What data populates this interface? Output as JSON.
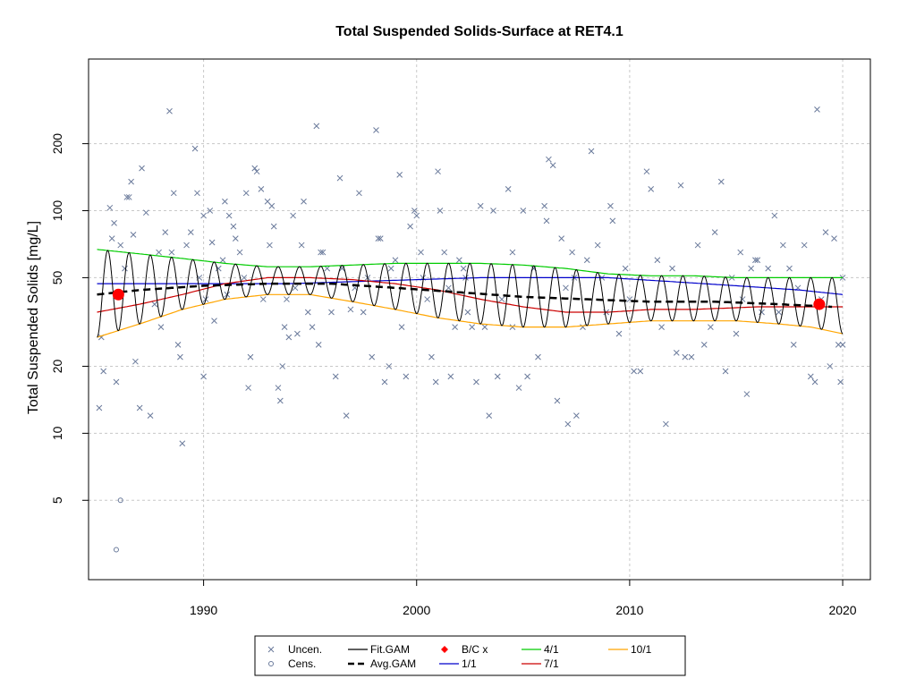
{
  "chart_data": {
    "type": "scatter",
    "title": "Total Suspended Solids-Surface at RET4.1",
    "xlabel": "",
    "ylabel": "Total Suspended Solids [mg/L]",
    "x_range": [
      1984.6,
      2021.3
    ],
    "y_range": [
      2.2,
      480
    ],
    "y_scale": "log",
    "x_ticks": [
      1990,
      2000,
      2010,
      2020
    ],
    "x_tick_labels": [
      "1990",
      "2000",
      "2010",
      "2020"
    ],
    "y_ticks": [
      5,
      10,
      20,
      50,
      100,
      200
    ],
    "y_tick_labels": [
      "5",
      "10",
      "20",
      "50",
      "100",
      "200"
    ],
    "grid": true,
    "legend_position": "bottom",
    "legend": [
      {
        "key": "uncen",
        "label": "Uncen.",
        "symbol": "cross",
        "color": "#6a7a9b"
      },
      {
        "key": "fit",
        "label": "Fit.GAM",
        "symbol": "line",
        "color": "#000000"
      },
      {
        "key": "bc",
        "label": "B/C x",
        "symbol": "diamond",
        "color": "#ff0000"
      },
      {
        "key": "apr",
        "label": "4/1",
        "symbol": "line",
        "color": "#00cc00"
      },
      {
        "key": "oct",
        "label": "10/1",
        "symbol": "line",
        "color": "#ffa500"
      },
      {
        "key": "cens",
        "label": "Cens.",
        "symbol": "circle",
        "color": "#6a7a9b"
      },
      {
        "key": "avg",
        "label": "Avg.GAM",
        "symbol": "dashed",
        "color": "#000000"
      },
      {
        "key": "jan",
        "label": "1/1",
        "symbol": "line",
        "color": "#0000cc"
      },
      {
        "key": "jul",
        "label": "7/1",
        "symbol": "line",
        "color": "#cc0000"
      }
    ],
    "uncensored_points": [
      [
        1985.1,
        13
      ],
      [
        1985.2,
        27
      ],
      [
        1985.3,
        19
      ],
      [
        1985.6,
        103
      ],
      [
        1985.7,
        75
      ],
      [
        1985.8,
        88
      ],
      [
        1985.9,
        17
      ],
      [
        1986.1,
        70
      ],
      [
        1986.3,
        55
      ],
      [
        1986.4,
        115
      ],
      [
        1986.5,
        115
      ],
      [
        1986.6,
        135
      ],
      [
        1986.7,
        78
      ],
      [
        1986.8,
        21
      ],
      [
        1987.0,
        13
      ],
      [
        1987.1,
        155
      ],
      [
        1987.3,
        98
      ],
      [
        1987.5,
        12
      ],
      [
        1987.7,
        38
      ],
      [
        1987.9,
        65
      ],
      [
        1988.0,
        30
      ],
      [
        1988.2,
        80
      ],
      [
        1988.4,
        280
      ],
      [
        1988.5,
        65
      ],
      [
        1988.6,
        120
      ],
      [
        1988.8,
        25
      ],
      [
        1988.9,
        22
      ],
      [
        1989.0,
        9
      ],
      [
        1989.2,
        70
      ],
      [
        1989.4,
        80
      ],
      [
        1989.6,
        190
      ],
      [
        1989.7,
        120
      ],
      [
        1989.8,
        50
      ],
      [
        1990.0,
        95
      ],
      [
        1990.0,
        18
      ],
      [
        1990.1,
        40
      ],
      [
        1990.3,
        100
      ],
      [
        1990.4,
        72
      ],
      [
        1990.5,
        32
      ],
      [
        1990.7,
        55
      ],
      [
        1990.9,
        60
      ],
      [
        1991.0,
        110
      ],
      [
        1991.1,
        42
      ],
      [
        1991.2,
        95
      ],
      [
        1991.4,
        85
      ],
      [
        1991.5,
        75
      ],
      [
        1991.7,
        65
      ],
      [
        1991.9,
        50
      ],
      [
        1992.0,
        120
      ],
      [
        1992.1,
        16
      ],
      [
        1992.2,
        22
      ],
      [
        1992.4,
        155
      ],
      [
        1992.5,
        150
      ],
      [
        1992.7,
        125
      ],
      [
        1992.8,
        40
      ],
      [
        1993.0,
        110
      ],
      [
        1993.1,
        70
      ],
      [
        1993.2,
        105
      ],
      [
        1993.3,
        85
      ],
      [
        1993.5,
        16
      ],
      [
        1993.6,
        14
      ],
      [
        1993.7,
        20
      ],
      [
        1993.8,
        30
      ],
      [
        1993.9,
        40
      ],
      [
        1994.0,
        27
      ],
      [
        1994.2,
        95
      ],
      [
        1994.3,
        45
      ],
      [
        1994.4,
        28
      ],
      [
        1994.6,
        70
      ],
      [
        1994.7,
        110
      ],
      [
        1994.9,
        35
      ],
      [
        1995.1,
        30
      ],
      [
        1995.3,
        240
      ],
      [
        1995.4,
        25
      ],
      [
        1995.5,
        65
      ],
      [
        1995.6,
        65
      ],
      [
        1995.8,
        55
      ],
      [
        1996.0,
        35
      ],
      [
        1996.2,
        18
      ],
      [
        1996.4,
        140
      ],
      [
        1996.5,
        55
      ],
      [
        1996.7,
        12
      ],
      [
        1996.9,
        36
      ],
      [
        1997.1,
        45
      ],
      [
        1997.3,
        120
      ],
      [
        1997.5,
        35
      ],
      [
        1997.7,
        50
      ],
      [
        1997.9,
        22
      ],
      [
        1998.1,
        230
      ],
      [
        1998.2,
        75
      ],
      [
        1998.3,
        75
      ],
      [
        1998.5,
        17
      ],
      [
        1998.7,
        20
      ],
      [
        1998.8,
        55
      ],
      [
        1999.0,
        60
      ],
      [
        1999.2,
        145
      ],
      [
        1999.3,
        30
      ],
      [
        1999.5,
        18
      ],
      [
        1999.7,
        85
      ],
      [
        1999.9,
        100
      ],
      [
        2000.0,
        95
      ],
      [
        2000.2,
        65
      ],
      [
        2000.3,
        50
      ],
      [
        2000.5,
        40
      ],
      [
        2000.7,
        22
      ],
      [
        2000.9,
        17
      ],
      [
        2001.0,
        150
      ],
      [
        2001.1,
        100
      ],
      [
        2001.3,
        65
      ],
      [
        2001.5,
        45
      ],
      [
        2001.6,
        18
      ],
      [
        2001.8,
        30
      ],
      [
        2002.0,
        60
      ],
      [
        2002.2,
        55
      ],
      [
        2002.4,
        35
      ],
      [
        2002.6,
        30
      ],
      [
        2002.8,
        17
      ],
      [
        2003.0,
        105
      ],
      [
        2003.2,
        30
      ],
      [
        2003.4,
        12
      ],
      [
        2003.6,
        100
      ],
      [
        2003.8,
        18
      ],
      [
        2004.0,
        40
      ],
      [
        2004.3,
        125
      ],
      [
        2004.5,
        65
      ],
      [
        2004.8,
        16
      ],
      [
        2005.0,
        100
      ],
      [
        2005.2,
        18
      ],
      [
        2005.5,
        55
      ],
      [
        2005.7,
        22
      ],
      [
        2006.0,
        105
      ],
      [
        2006.1,
        90
      ],
      [
        2006.2,
        170
      ],
      [
        2006.4,
        160
      ],
      [
        2006.6,
        14
      ],
      [
        2006.8,
        75
      ],
      [
        2007.0,
        45
      ],
      [
        2007.1,
        11
      ],
      [
        2007.3,
        65
      ],
      [
        2007.5,
        12
      ],
      [
        2007.8,
        30
      ],
      [
        2008.0,
        60
      ],
      [
        2008.2,
        185
      ],
      [
        2008.5,
        70
      ],
      [
        2008.7,
        50
      ],
      [
        2008.9,
        35
      ],
      [
        2009.1,
        105
      ],
      [
        2009.2,
        90
      ],
      [
        2009.5,
        28
      ],
      [
        2009.8,
        55
      ],
      [
        2010.0,
        40
      ],
      [
        2010.2,
        19
      ],
      [
        2010.5,
        19
      ],
      [
        2010.8,
        150
      ],
      [
        2011.0,
        125
      ],
      [
        2011.3,
        60
      ],
      [
        2011.5,
        30
      ],
      [
        2011.7,
        11
      ],
      [
        2012.0,
        55
      ],
      [
        2012.2,
        23
      ],
      [
        2012.4,
        130
      ],
      [
        2012.6,
        22
      ],
      [
        2012.9,
        22
      ],
      [
        2013.2,
        70
      ],
      [
        2013.5,
        25
      ],
      [
        2013.8,
        30
      ],
      [
        2014.0,
        80
      ],
      [
        2014.3,
        135
      ],
      [
        2014.5,
        19
      ],
      [
        2014.8,
        50
      ],
      [
        2015.0,
        28
      ],
      [
        2015.2,
        65
      ],
      [
        2015.5,
        15
      ],
      [
        2015.7,
        55
      ],
      [
        2015.9,
        60
      ],
      [
        2016.0,
        60
      ],
      [
        2016.2,
        35
      ],
      [
        2016.5,
        55
      ],
      [
        2016.8,
        95
      ],
      [
        2017.0,
        35
      ],
      [
        2017.2,
        70
      ],
      [
        2017.5,
        55
      ],
      [
        2017.7,
        25
      ],
      [
        2017.9,
        45
      ],
      [
        2018.2,
        70
      ],
      [
        2018.5,
        18
      ],
      [
        2018.7,
        17
      ],
      [
        2018.8,
        285
      ],
      [
        2019.0,
        40
      ],
      [
        2019.2,
        80
      ],
      [
        2019.4,
        20
      ],
      [
        2019.6,
        75
      ],
      [
        2019.8,
        25
      ],
      [
        2019.9,
        17
      ],
      [
        2020.0,
        25
      ],
      [
        2020.0,
        50
      ],
      [
        2015.3,
        40
      ],
      [
        2007.4,
        50
      ],
      [
        2004.5,
        30
      ],
      [
        2002.3,
        50
      ]
    ],
    "censored_points": [
      [
        1985.9,
        3
      ],
      [
        1986.1,
        5
      ]
    ],
    "fit_gam": {
      "x_start": 1985.0,
      "x_end": 2020.0,
      "cycles_per_year": 1,
      "comment": "sinusoidal seasonal fit oscillating between the 10/1 and 4/1 curves"
    },
    "avg_gam": {
      "x": [
        1985.0,
        1987.0,
        1990.0,
        1993.0,
        1996.0,
        1999.0,
        2002.0,
        2005.0,
        2008.0,
        2011.0,
        2014.0,
        2017.0,
        2019.5
      ],
      "y": [
        42,
        44,
        46,
        47,
        47,
        45,
        43,
        41,
        40,
        39,
        39,
        38,
        37
      ]
    },
    "bc_points": [
      [
        1986.0,
        42
      ],
      [
        2018.9,
        38
      ]
    ],
    "series": [
      {
        "name": "4/1",
        "x": [
          1985.0,
          1987.0,
          1989.0,
          1991.0,
          1993.0,
          1995.0,
          1997.0,
          1999.0,
          2001.0,
          2003.0,
          2005.0,
          2007.0,
          2009.0,
          2011.0,
          2013.0,
          2015.0,
          2017.0,
          2020.0
        ],
        "y": [
          67,
          64,
          61,
          58,
          56,
          56,
          57,
          58,
          58,
          58,
          57,
          55,
          52,
          51,
          51,
          50,
          50,
          50
        ]
      },
      {
        "name": "1/1",
        "x": [
          1985.0,
          1988.0,
          1991.0,
          1994.0,
          1997.0,
          2000.0,
          2003.0,
          2006.0,
          2009.0,
          2012.0,
          2015.0,
          2018.0,
          2020.0
        ],
        "y": [
          47,
          47,
          47,
          47,
          48,
          49,
          50,
          50,
          50,
          48,
          46,
          44,
          42
        ]
      },
      {
        "name": "7/1",
        "x": [
          1985.0,
          1987.0,
          1989.0,
          1991.0,
          1993.0,
          1995.0,
          1997.0,
          1999.0,
          2001.0,
          2003.0,
          2005.0,
          2007.0,
          2009.0,
          2011.0,
          2013.0,
          2016.0,
          2018.0,
          2020.0
        ],
        "y": [
          35,
          38,
          42,
          47,
          50,
          50,
          49,
          47,
          44,
          40,
          37,
          35,
          35,
          36,
          36,
          37,
          37,
          37
        ]
      },
      {
        "name": "10/1",
        "x": [
          1985.0,
          1987.0,
          1989.0,
          1991.0,
          1993.0,
          1995.0,
          1997.0,
          1999.0,
          2001.0,
          2003.0,
          2005.0,
          2007.0,
          2009.0,
          2011.0,
          2013.0,
          2015.0,
          2017.0,
          2018.5,
          2020.0
        ],
        "y": [
          27,
          31,
          36,
          40,
          42,
          42,
          39,
          36,
          33,
          31,
          30,
          30,
          31,
          32,
          32,
          32,
          31,
          30,
          28
        ]
      }
    ]
  }
}
